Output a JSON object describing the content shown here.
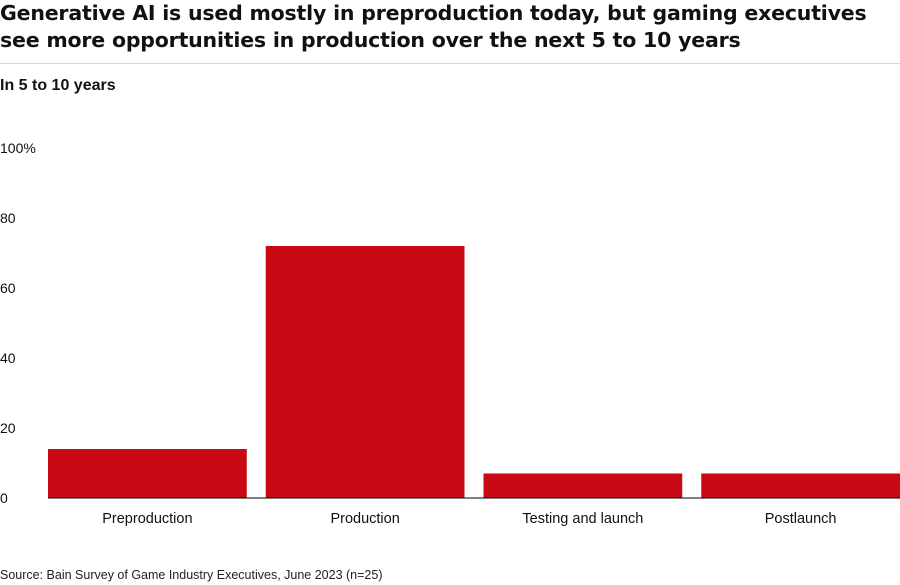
{
  "title": "Generative AI is used mostly in preproduction today, but gaming executives see more opportunities in production over the next 5 to 10 years",
  "subtitle": "In 5 to 10 years",
  "source": "Source: Bain Survey of Game Industry Executives, June 2023 (n=25)",
  "colors": {
    "bar": "#c80a14",
    "axis": "#000000",
    "text": "#111111"
  },
  "chart_data": {
    "type": "bar",
    "title": "Generative AI is used mostly in preproduction today, but gaming executives see more opportunities in production over the next 5 to 10 years",
    "subtitle": "In 5 to 10 years",
    "categories": [
      "Preproduction",
      "Production",
      "Testing and launch",
      "Postlaunch"
    ],
    "values": [
      14,
      72,
      7,
      7
    ],
    "ylim": [
      0,
      100
    ],
    "yticks": [
      0,
      20,
      40,
      60,
      80,
      100
    ],
    "ytick_labels": [
      "0",
      "20",
      "40",
      "60",
      "80",
      "100%"
    ],
    "xlabel": "",
    "ylabel": "",
    "grid": false,
    "legend": "none"
  }
}
